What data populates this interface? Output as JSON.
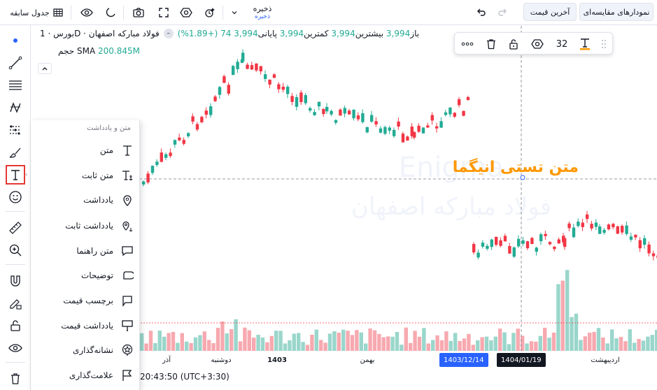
{
  "topbar": {
    "compare_label": "نمودارهای مقایسه‌ای",
    "last_price_label": "آخرین قیمت",
    "save_title": "ذخیره",
    "save_subtitle": "ذخیره",
    "table_label": "جدول سابقه"
  },
  "legend": {
    "instrument": "بورس · 1D · فولاد مبارکه اصفهان",
    "open_label": "باز",
    "open_value": "3,994",
    "high_label": "بیشترین",
    "high_value": "3,994",
    "low_label": "کمترین",
    "low_value": "3,994",
    "close_label": "پایانی",
    "close_value": "3,994",
    "change": "74 (+1.89%)",
    "volume_label": "حجم",
    "sma_label": "SMA",
    "volume_value": "200.845M"
  },
  "watermark": {
    "line1": "Enigma",
    "line2": "فولاد مبارکه اصفهان"
  },
  "annotation_text": "متن تستی انیگما",
  "float_toolbar": {
    "font_size": "32"
  },
  "menu": {
    "header": "متن و یادداشت",
    "items": [
      {
        "label": "متن",
        "icon": "text-icon"
      },
      {
        "label": "متن ثابت",
        "icon": "anchored-text-icon"
      },
      {
        "label": "یادداشت",
        "icon": "note-pin-icon"
      },
      {
        "label": "یادداشت ثابت",
        "icon": "anchored-note-icon"
      },
      {
        "label": "متن راهنما",
        "icon": "callout-icon"
      },
      {
        "label": "توضیحات",
        "icon": "comment-icon"
      },
      {
        "label": "برچسب قیمت",
        "icon": "price-label-icon"
      },
      {
        "label": "یادداشت قیمت",
        "icon": "price-note-icon"
      },
      {
        "label": "نشانه‌گذاری",
        "icon": "signpost-icon"
      },
      {
        "label": "علامت‌گذاری",
        "icon": "flag-mark-icon"
      }
    ]
  },
  "xaxis": {
    "labels": [
      "آذر",
      "دوشنبه",
      "1403",
      "بهمن",
      "اردیبهشت"
    ],
    "crosshair_date": "1403/12/14",
    "crosshair_date_2": "1404/01/19"
  },
  "status": {
    "clock": "20:43:50 (UTC+3:30)"
  },
  "colors": {
    "up": "#22ab94",
    "down": "#f23645",
    "vol_up": "#9ad6cb",
    "vol_down": "#f7a9b0",
    "annotation": "#ff9800",
    "crosshair_label": "#2962ff",
    "accent_red_box": "#e53935"
  }
}
